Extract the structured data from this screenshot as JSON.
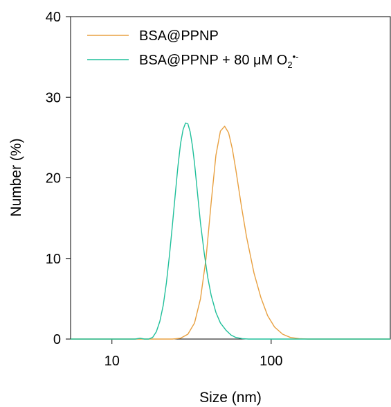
{
  "chart_data": {
    "type": "line",
    "x_scale": "log",
    "xlim": [
      5.5,
      560
    ],
    "ylim": [
      0,
      40
    ],
    "xlabel": "Size (nm)",
    "ylabel": "Number (%)",
    "x_ticks": [
      10,
      100
    ],
    "x_tick_labels": [
      "10",
      "100"
    ],
    "y_ticks": [
      0,
      10,
      20,
      30,
      40
    ],
    "y_tick_labels": [
      "0",
      "10",
      "20",
      "30",
      "40"
    ],
    "grid": false,
    "legend_position": "top-left",
    "series": [
      {
        "name": "BSA@PPNP",
        "color": "#E8A040",
        "x": [
          5.5,
          20,
          24,
          27,
          30,
          33,
          36,
          39,
          42,
          45,
          48,
          51,
          54,
          57,
          60,
          65,
          70,
          78,
          86,
          95,
          105,
          118,
          132,
          150,
          170,
          200,
          560
        ],
        "y": [
          0,
          0,
          0,
          0.1,
          0.6,
          2.0,
          5.0,
          10.0,
          17.0,
          22.8,
          25.8,
          26.4,
          25.6,
          23.6,
          21.0,
          16.5,
          12.7,
          8.2,
          5.2,
          2.9,
          1.5,
          0.6,
          0.2,
          0.05,
          0,
          0,
          0
        ]
      },
      {
        "name": "BSA@PPNP + 80 μM O₂•⁻",
        "color": "#1FBF9A",
        "x": [
          5.5,
          14,
          15,
          16,
          17,
          18,
          19,
          20,
          21,
          22,
          23,
          24,
          25,
          26,
          27,
          28,
          29,
          30,
          31,
          32,
          33,
          34,
          35,
          36,
          38,
          40,
          42,
          45,
          48,
          52,
          56,
          60,
          66,
          72,
          80,
          560
        ],
        "y": [
          0,
          0,
          0.1,
          0,
          0,
          0.2,
          0.9,
          2.2,
          4.2,
          7.0,
          10.5,
          14.2,
          18.0,
          21.5,
          24.3,
          26.0,
          26.8,
          26.7,
          25.7,
          24.0,
          21.8,
          19.3,
          16.8,
          14.4,
          10.6,
          7.6,
          5.4,
          3.3,
          2.0,
          1.1,
          0.5,
          0.2,
          0.05,
          0,
          0,
          0
        ]
      }
    ],
    "legend": [
      {
        "label": "BSA@PPNP",
        "subscript": "",
        "superscript": "",
        "color": "#E8A040"
      },
      {
        "label": "BSA@PPNP + 80 μM O",
        "subscript": "2",
        "superscript": "•-",
        "color": "#1FBF9A"
      }
    ]
  }
}
